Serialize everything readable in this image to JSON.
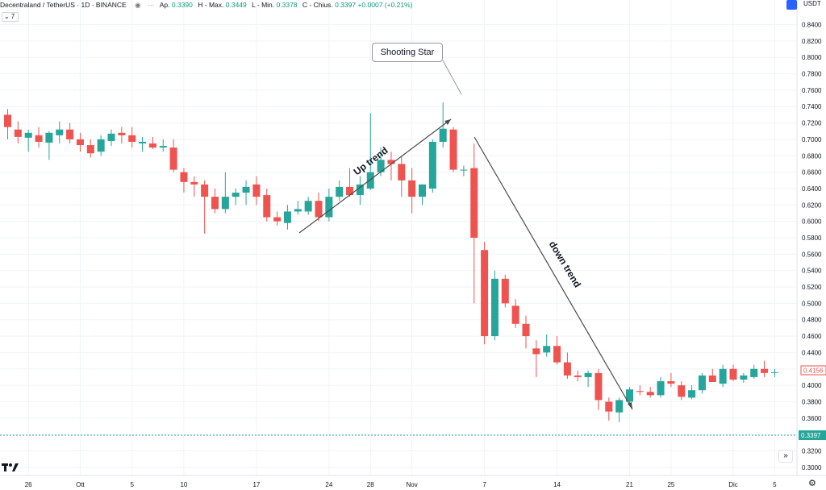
{
  "header": {
    "symbol": "Decentraland / TetherUS · 1D · BINANCE",
    "open_label": "Ap.",
    "open_value": "0.3390",
    "high_label": "H - Max.",
    "high_value": "0.3449",
    "low_label": "L - Min.",
    "low_value": "0.3378",
    "close_label": "C - Chius.",
    "close_value": "0.3397",
    "change_value": "+0.0007 (+0.21%)",
    "indicator_count": "7",
    "currency": "USDT"
  },
  "colors": {
    "up": "#26a69a",
    "down": "#ef5350",
    "grid": "#f0f3fa",
    "line": "#4a4a4a"
  },
  "chart_data": {
    "type": "candlestick",
    "y_axis": {
      "min": 0.29,
      "max": 0.87,
      "ticks": [
        "0.3000",
        "0.3200",
        "0.3400",
        "0.3600",
        "0.3800",
        "0.4000",
        "0.4200",
        "0.4400",
        "0.4600",
        "0.4800",
        "0.5000",
        "0.5200",
        "0.5400",
        "0.5600",
        "0.5800",
        "0.6000",
        "0.6200",
        "0.6400",
        "0.6600",
        "0.6800",
        "0.7000",
        "0.7200",
        "0.7400",
        "0.7600",
        "0.7800",
        "0.8000",
        "0.8200",
        "0.8400"
      ]
    },
    "x_labels": [
      {
        "label": "26",
        "i": 2
      },
      {
        "label": "Ott",
        "i": 7
      },
      {
        "label": "5",
        "i": 12
      },
      {
        "label": "10",
        "i": 17
      },
      {
        "label": "17",
        "i": 24
      },
      {
        "label": "24",
        "i": 31
      },
      {
        "label": "28",
        "i": 35
      },
      {
        "label": "Nov",
        "i": 39
      },
      {
        "label": "7",
        "i": 46
      },
      {
        "label": "14",
        "i": 53
      },
      {
        "label": "21",
        "i": 60
      },
      {
        "label": "25",
        "i": 64
      },
      {
        "label": "Dic",
        "i": 70
      },
      {
        "label": "5",
        "i": 74
      }
    ],
    "candles": [
      [
        0.73,
        0.737,
        0.7,
        0.715
      ],
      [
        0.712,
        0.722,
        0.695,
        0.703
      ],
      [
        0.702,
        0.712,
        0.685,
        0.708
      ],
      [
        0.705,
        0.715,
        0.69,
        0.697
      ],
      [
        0.696,
        0.71,
        0.675,
        0.708
      ],
      [
        0.705,
        0.722,
        0.695,
        0.712
      ],
      [
        0.712,
        0.72,
        0.695,
        0.7
      ],
      [
        0.7,
        0.708,
        0.685,
        0.693
      ],
      [
        0.693,
        0.7,
        0.678,
        0.683
      ],
      [
        0.685,
        0.705,
        0.68,
        0.7
      ],
      [
        0.698,
        0.712,
        0.692,
        0.707
      ],
      [
        0.708,
        0.715,
        0.695,
        0.705
      ],
      [
        0.705,
        0.715,
        0.69,
        0.697
      ],
      [
        0.695,
        0.703,
        0.685,
        0.697
      ],
      [
        0.695,
        0.703,
        0.688,
        0.69
      ],
      [
        0.69,
        0.7,
        0.685,
        0.692
      ],
      [
        0.69,
        0.7,
        0.66,
        0.663
      ],
      [
        0.66,
        0.665,
        0.635,
        0.648
      ],
      [
        0.648,
        0.655,
        0.63,
        0.645
      ],
      [
        0.645,
        0.65,
        0.585,
        0.63
      ],
      [
        0.63,
        0.64,
        0.61,
        0.615
      ],
      [
        0.615,
        0.66,
        0.61,
        0.63
      ],
      [
        0.63,
        0.64,
        0.62,
        0.635
      ],
      [
        0.635,
        0.65,
        0.62,
        0.642
      ],
      [
        0.645,
        0.655,
        0.62,
        0.63
      ],
      [
        0.632,
        0.64,
        0.6,
        0.605
      ],
      [
        0.605,
        0.612,
        0.595,
        0.6
      ],
      [
        0.598,
        0.62,
        0.59,
        0.612
      ],
      [
        0.612,
        0.625,
        0.608,
        0.615
      ],
      [
        0.612,
        0.63,
        0.608,
        0.625
      ],
      [
        0.625,
        0.635,
        0.6,
        0.605
      ],
      [
        0.605,
        0.64,
        0.6,
        0.63
      ],
      [
        0.63,
        0.65,
        0.625,
        0.642
      ],
      [
        0.642,
        0.665,
        0.63,
        0.632
      ],
      [
        0.632,
        0.655,
        0.62,
        0.645
      ],
      [
        0.64,
        0.732,
        0.638,
        0.66
      ],
      [
        0.66,
        0.69,
        0.655,
        0.675
      ],
      [
        0.675,
        0.685,
        0.65,
        0.67
      ],
      [
        0.67,
        0.68,
        0.63,
        0.65
      ],
      [
        0.65,
        0.665,
        0.61,
        0.63
      ],
      [
        0.63,
        0.645,
        0.62,
        0.645
      ],
      [
        0.64,
        0.7,
        0.635,
        0.697
      ],
      [
        0.697,
        0.745,
        0.69,
        0.713
      ],
      [
        0.712,
        0.715,
        0.66,
        0.663
      ],
      [
        0.663,
        0.668,
        0.655,
        0.663
      ],
      [
        0.665,
        0.695,
        0.5,
        0.58
      ],
      [
        0.565,
        0.575,
        0.45,
        0.46
      ],
      [
        0.46,
        0.54,
        0.455,
        0.53
      ],
      [
        0.53,
        0.535,
        0.495,
        0.5
      ],
      [
        0.497,
        0.505,
        0.47,
        0.475
      ],
      [
        0.475,
        0.485,
        0.445,
        0.46
      ],
      [
        0.445,
        0.455,
        0.41,
        0.438
      ],
      [
        0.44,
        0.462,
        0.435,
        0.448
      ],
      [
        0.448,
        0.46,
        0.425,
        0.428
      ],
      [
        0.428,
        0.44,
        0.408,
        0.412
      ],
      [
        0.412,
        0.418,
        0.405,
        0.41
      ],
      [
        0.41,
        0.418,
        0.398,
        0.415
      ],
      [
        0.415,
        0.42,
        0.37,
        0.382
      ],
      [
        0.38,
        0.385,
        0.357,
        0.368
      ],
      [
        0.367,
        0.385,
        0.355,
        0.382
      ],
      [
        0.38,
        0.398,
        0.375,
        0.395
      ],
      [
        0.393,
        0.4,
        0.388,
        0.392
      ],
      [
        0.392,
        0.398,
        0.385,
        0.388
      ],
      [
        0.388,
        0.41,
        0.385,
        0.405
      ],
      [
        0.405,
        0.415,
        0.398,
        0.402
      ],
      [
        0.4,
        0.405,
        0.382,
        0.386
      ],
      [
        0.385,
        0.4,
        0.383,
        0.394
      ],
      [
        0.394,
        0.415,
        0.39,
        0.412
      ],
      [
        0.412,
        0.42,
        0.405,
        0.404
      ],
      [
        0.402,
        0.425,
        0.398,
        0.42
      ],
      [
        0.42,
        0.425,
        0.405,
        0.407
      ],
      [
        0.407,
        0.415,
        0.403,
        0.412
      ],
      [
        0.41,
        0.425,
        0.408,
        0.42
      ],
      [
        0.42,
        0.43,
        0.41,
        0.415
      ],
      [
        0.415,
        0.42,
        0.41,
        0.416
      ]
    ],
    "annotations": {
      "callout": "Shooting Star",
      "up_label": "Up trend",
      "down_label": "down trend"
    },
    "price_tags": {
      "last": "0.4156",
      "current": "0.3397"
    }
  }
}
